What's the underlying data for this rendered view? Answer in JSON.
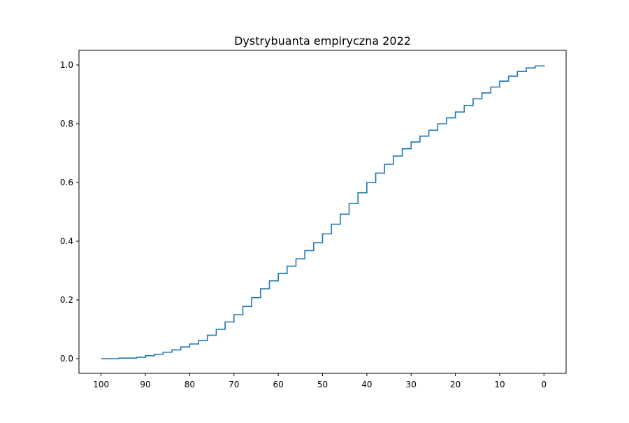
{
  "chart_data": {
    "type": "line",
    "title": "Dystrybuanta empiryczna 2022",
    "xlabel": "",
    "ylabel": "",
    "xlim": [
      105,
      -5
    ],
    "ylim": [
      -0.05,
      1.05
    ],
    "x_reversed": true,
    "grid": false,
    "colors": {
      "line": "#1f77b4",
      "axes": "#000000",
      "background": "#ffffff"
    },
    "xticks": [
      100,
      90,
      80,
      70,
      60,
      50,
      40,
      30,
      20,
      10,
      0
    ],
    "xtick_labels": [
      "100",
      "90",
      "80",
      "70",
      "60",
      "50",
      "40",
      "30",
      "20",
      "10",
      "0"
    ],
    "yticks": [
      0.0,
      0.2,
      0.4,
      0.6,
      0.8,
      1.0
    ],
    "ytick_labels": [
      "0.0",
      "0.2",
      "0.4",
      "0.6",
      "0.8",
      "1.0"
    ],
    "series": [
      {
        "step": true,
        "x": [
          100,
          96,
          92,
          90,
          88,
          86,
          84,
          82,
          80,
          78,
          76,
          74,
          72,
          70,
          68,
          66,
          64,
          62,
          60,
          58,
          56,
          54,
          52,
          50,
          48,
          46,
          44,
          42,
          40,
          38,
          36,
          34,
          32,
          30,
          28,
          26,
          24,
          22,
          20,
          18,
          16,
          14,
          12,
          10,
          8,
          6,
          4,
          2,
          0
        ],
        "y": [
          0.0,
          0.002,
          0.005,
          0.01,
          0.015,
          0.022,
          0.03,
          0.04,
          0.05,
          0.062,
          0.08,
          0.1,
          0.125,
          0.15,
          0.178,
          0.208,
          0.238,
          0.265,
          0.29,
          0.315,
          0.34,
          0.368,
          0.395,
          0.425,
          0.458,
          0.492,
          0.528,
          0.565,
          0.6,
          0.632,
          0.662,
          0.69,
          0.715,
          0.738,
          0.758,
          0.778,
          0.8,
          0.82,
          0.84,
          0.862,
          0.885,
          0.905,
          0.925,
          0.945,
          0.962,
          0.978,
          0.99,
          0.997,
          1.0
        ]
      }
    ]
  }
}
